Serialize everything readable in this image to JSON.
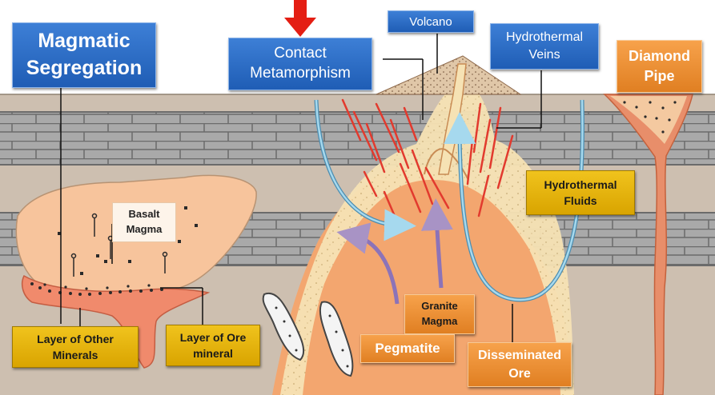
{
  "labels": {
    "magmatic_segregation": "Magmatic\nSegregation",
    "contact_metamorphism": "Contact\nMetamorphism",
    "volcano": "Volcano",
    "hydrothermal_veins": "Hydrothermal\nVeins",
    "diamond_pipe": "Diamond\nPipe",
    "basalt_magma": "Basalt\nMagma",
    "hydrothermal_fluids": "Hydrothermal\nFluids",
    "granite_magma": "Granite\nMagma",
    "pegmatite": "Pegmatite",
    "disseminated_ore": "Disseminated\nOre",
    "layer_other_minerals": "Layer of Other\nMinerals",
    "layer_ore_mineral": "Layer of Ore\nmineral"
  },
  "colors": {
    "label_blue": "#2a6cc6",
    "label_orange": "#ee8f34",
    "label_yellow": "#e6b40c",
    "indicator_arrow": "#e41e13",
    "sky": "#ffffff",
    "ground": "#cdbfb0",
    "rock_layer": "#a5a5a5",
    "basalt_magma": "#f7c49c",
    "granite_magma": "#f3a66f",
    "fluid_arrow": "#4d8db0",
    "vein": "#e23a2e"
  }
}
